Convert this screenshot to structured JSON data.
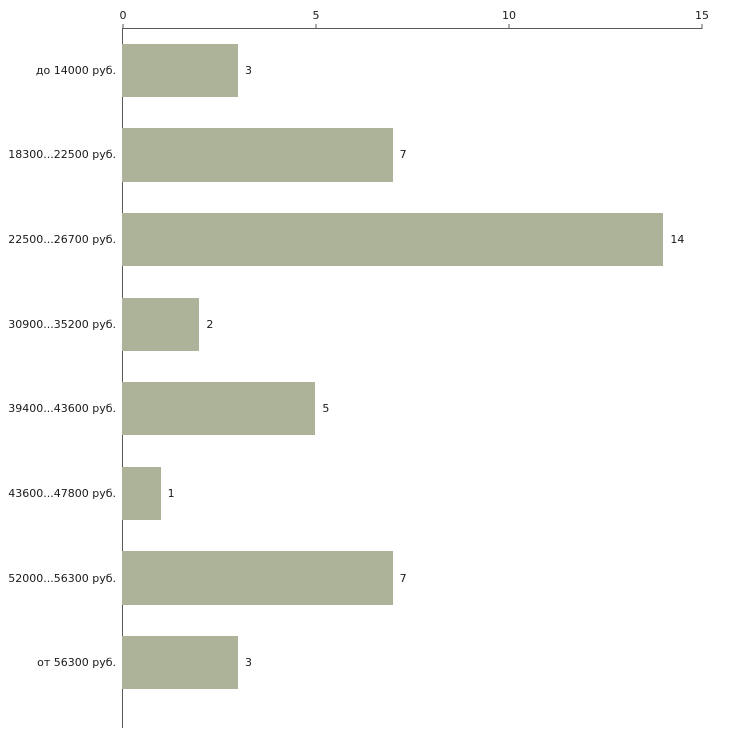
{
  "chart_data": {
    "type": "bar",
    "orientation": "horizontal",
    "title": "",
    "xlabel": "",
    "ylabel": "",
    "categories": [
      "до 14000 руб.",
      "18300...22500 руб.",
      "22500...26700 руб.",
      "30900...35200 руб.",
      "39400...43600 руб.",
      "43600...47800 руб.",
      "52000...56300 руб.",
      "от 56300 руб."
    ],
    "values": [
      3,
      7,
      14,
      2,
      5,
      1,
      7,
      3
    ],
    "value_labels": [
      "3",
      "7",
      "14",
      "2",
      "5",
      "1",
      "7",
      "3"
    ],
    "xlim": [
      0,
      15
    ],
    "xticks": [
      "0",
      "5",
      "10",
      "15"
    ],
    "xtick_values": [
      0,
      5,
      10,
      15
    ],
    "tick_side": "top",
    "grid": "off",
    "legend": "none",
    "bar_color": "#adb399",
    "axis_color": "#595959",
    "background_color": "#ffffff"
  }
}
